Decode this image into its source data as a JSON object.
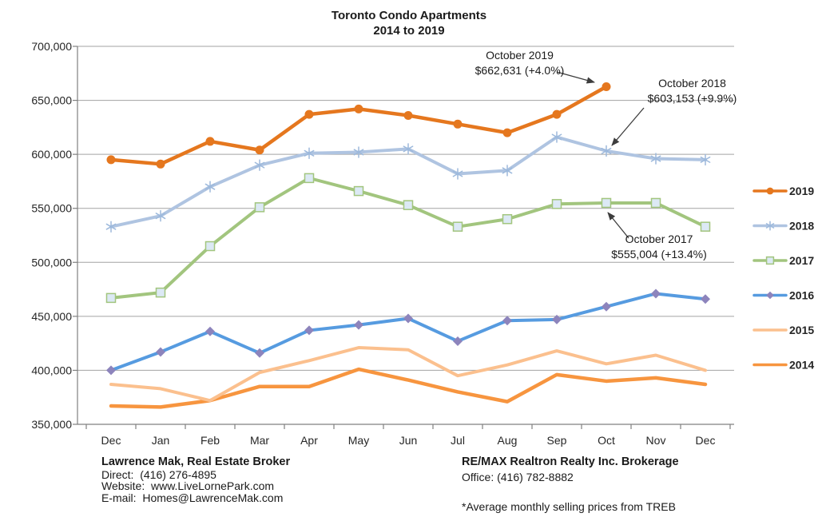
{
  "chart_data": {
    "type": "line",
    "title": "Toronto Condo Apartments",
    "subtitle": "2014 to 2019",
    "categories": [
      "Dec",
      "Jan",
      "Feb",
      "Mar",
      "Apr",
      "May",
      "Jun",
      "Jul",
      "Aug",
      "Sep",
      "Oct",
      "Nov",
      "Dec"
    ],
    "ylabel": "",
    "xlabel": "",
    "ylim": [
      350000,
      700000
    ],
    "ytick_step": 50000,
    "ytick_labels": [
      "700,000",
      "650,000",
      "600,000",
      "550,000",
      "500,000",
      "450,000",
      "400,000",
      "350,000"
    ],
    "grid": "horizontal",
    "legend_position": "right",
    "series": [
      {
        "name": "2019",
        "color": "#E5771E",
        "marker": "circle",
        "marker_fill": "#E5771E",
        "line_width": 4.5,
        "values": [
          595000,
          591000,
          612000,
          604000,
          637000,
          642000,
          636000,
          628000,
          620000,
          637000,
          662631,
          null,
          null
        ]
      },
      {
        "name": "2018",
        "color": "#AFC4E1",
        "marker": "asterisk",
        "marker_fill": "#9DB9DC",
        "line_width": 4,
        "values": [
          533000,
          543000,
          570000,
          590000,
          601000,
          602000,
          605000,
          582000,
          585000,
          616000,
          603153,
          596000,
          595000
        ]
      },
      {
        "name": "2017",
        "color": "#A2C57E",
        "marker": "square",
        "marker_fill": "#DCE9F5",
        "line_width": 4,
        "values": [
          467000,
          472000,
          515000,
          551000,
          578000,
          566000,
          553000,
          533000,
          540000,
          554000,
          555004,
          555000,
          533000
        ]
      },
      {
        "name": "2016",
        "color": "#569BE0",
        "marker": "diamond",
        "marker_fill": "#8D84BC",
        "line_width": 4,
        "values": [
          400000,
          417000,
          436000,
          416000,
          437000,
          442000,
          448000,
          427000,
          446000,
          447000,
          459000,
          471000,
          466000
        ]
      },
      {
        "name": "2015",
        "color": "#FBC08E",
        "marker": "none",
        "marker_fill": "#FBC08E",
        "line_width": 4,
        "values": [
          387000,
          383000,
          372000,
          398000,
          409000,
          421000,
          419000,
          395000,
          405000,
          418000,
          406000,
          414000,
          400000
        ]
      },
      {
        "name": "2014",
        "color": "#F7953F",
        "marker": "none",
        "marker_fill": "#F7953F",
        "line_width": 4.5,
        "values": [
          367000,
          366000,
          372000,
          385000,
          385000,
          401000,
          391000,
          380000,
          371000,
          396000,
          390000,
          393000,
          387000
        ]
      }
    ],
    "annotations": [
      {
        "id": "oct2019",
        "line1": "October 2019",
        "line2": "$662,631 (+4.0%)"
      },
      {
        "id": "oct2018",
        "line1": "October 2018",
        "line2": "$603,153 (+9.9%)"
      },
      {
        "id": "oct2017",
        "line1": "October 2017",
        "line2": "$555,004 (+13.4%)"
      }
    ]
  },
  "footer": {
    "left": {
      "name": "Lawrence Mak, Real Estate Broker",
      "direct": "Direct:  (416) 276-4895",
      "website": "Website:  www.LiveLornePark.com",
      "email": "E-mail:  Homes@LawrenceMak.com"
    },
    "right": {
      "brokerage": "RE/MAX Realtron Realty Inc. Brokerage",
      "office": "Office: (416) 782-8882",
      "note": "*Average monthly selling prices from TREB"
    }
  }
}
